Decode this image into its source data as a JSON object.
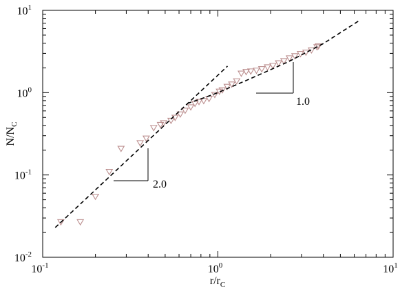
{
  "chart_data": {
    "type": "scatter",
    "xlabel": {
      "text": "r/r",
      "subscript": "C"
    },
    "ylabel": {
      "text": "N/N",
      "subscript": "C"
    },
    "xscale": "log",
    "yscale": "log",
    "xlim": [
      0.1,
      10
    ],
    "ylim": [
      0.01,
      10
    ],
    "xticks": [
      {
        "value": 0.1,
        "label": "10",
        "exponent": "-1"
      },
      {
        "value": 1,
        "label": "10",
        "exponent": "0"
      },
      {
        "value": 10,
        "label": "10",
        "exponent": "1"
      }
    ],
    "yticks": [
      {
        "value": 0.01,
        "label": "10",
        "exponent": "-2"
      },
      {
        "value": 0.1,
        "label": "10",
        "exponent": "-1"
      },
      {
        "value": 1,
        "label": "10",
        "exponent": "0"
      },
      {
        "value": 10,
        "label": "10",
        "exponent": "1"
      }
    ],
    "xminorticks": [
      0.2,
      0.3,
      0.4,
      0.5,
      0.6,
      0.7,
      0.8,
      0.9,
      2,
      3,
      4,
      5,
      6,
      7,
      8,
      9
    ],
    "yminorticks": [
      0.02,
      0.03,
      0.04,
      0.05,
      0.06,
      0.07,
      0.08,
      0.09,
      0.2,
      0.3,
      0.4,
      0.5,
      0.6,
      0.7,
      0.8,
      0.9,
      2,
      3,
      4,
      5,
      6,
      7,
      8,
      9
    ],
    "series": [
      {
        "color": "#bc8f8f",
        "marker": "triangle-down",
        "x": [
          0.127,
          0.164,
          0.2,
          0.24,
          0.28,
          0.36,
          0.39,
          0.43,
          0.47,
          0.49,
          0.54,
          0.57,
          0.61,
          0.65,
          0.7,
          0.74,
          0.78,
          0.83,
          0.89,
          0.96,
          1.02,
          1.06,
          1.13,
          1.2,
          1.28,
          1.36,
          1.45,
          1.54,
          1.66,
          1.78,
          1.92,
          2.06,
          2.22,
          2.38,
          2.56,
          2.75,
          2.96,
          3.18,
          3.42,
          3.68,
          3.75
        ],
        "values": [
          0.027,
          0.027,
          0.055,
          0.11,
          0.21,
          0.246,
          0.28,
          0.376,
          0.41,
          0.43,
          0.46,
          0.5,
          0.55,
          0.61,
          0.67,
          0.74,
          0.78,
          0.8,
          0.85,
          0.95,
          1.04,
          1.08,
          1.19,
          1.27,
          1.39,
          1.72,
          1.8,
          1.83,
          1.87,
          1.95,
          2.05,
          2.14,
          2.3,
          2.44,
          2.64,
          2.8,
          2.98,
          3.1,
          3.3,
          3.6,
          3.7
        ]
      },
      {
        "color": "#000000",
        "style": "dashed",
        "x": [
          0.118,
          1.135
        ],
        "values": [
          0.023,
          2.1
        ]
      },
      {
        "color": "#000000",
        "style": "dashed",
        "x": [
          0.67,
          0.8,
          1.0,
          1.5,
          2.5,
          4.0,
          6.4
        ],
        "values": [
          0.74,
          0.84,
          1.0,
          1.45,
          2.35,
          3.95,
          7.5
        ]
      }
    ],
    "annotations": [
      "2.0",
      "1.0"
    ]
  }
}
